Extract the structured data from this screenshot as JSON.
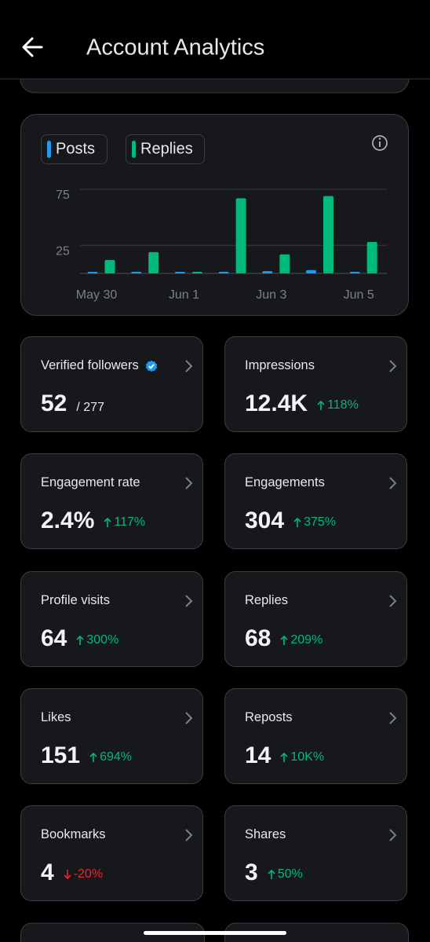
{
  "header": {
    "title": "Account Analytics"
  },
  "chart_data": {
    "type": "bar",
    "categories": [
      "May 30",
      null,
      "Jun 1",
      null,
      "Jun 3",
      null,
      "Jun 5"
    ],
    "series": [
      {
        "name": "Posts",
        "color": "#1d9bf0",
        "values": [
          0,
          1,
          0,
          1,
          2,
          3,
          1
        ]
      },
      {
        "name": "Replies",
        "color": "#00ba7c",
        "values": [
          12,
          19,
          0,
          67,
          17,
          69,
          28
        ]
      }
    ],
    "ylim": [
      0,
      75
    ],
    "yticks": [
      25,
      75
    ],
    "grid": true
  },
  "cards": [
    {
      "title": "Verified followers",
      "value": "52",
      "secondary": "/ 277",
      "verified": true
    },
    {
      "title": "Impressions",
      "value": "12.4K",
      "change": "118%",
      "direction": "up"
    },
    {
      "title": "Engagement rate",
      "value": "2.4%",
      "change": "117%",
      "direction": "up"
    },
    {
      "title": "Engagements",
      "value": "304",
      "change": "375%",
      "direction": "up"
    },
    {
      "title": "Profile visits",
      "value": "64",
      "change": "300%",
      "direction": "up"
    },
    {
      "title": "Replies",
      "value": "68",
      "change": "209%",
      "direction": "up"
    },
    {
      "title": "Likes",
      "value": "151",
      "change": "694%",
      "direction": "up"
    },
    {
      "title": "Reposts",
      "value": "14",
      "change": "10K%",
      "direction": "up"
    },
    {
      "title": "Bookmarks",
      "value": "4",
      "change": "-20%",
      "direction": "down"
    },
    {
      "title": "Shares",
      "value": "3",
      "change": "50%",
      "direction": "up"
    }
  ]
}
